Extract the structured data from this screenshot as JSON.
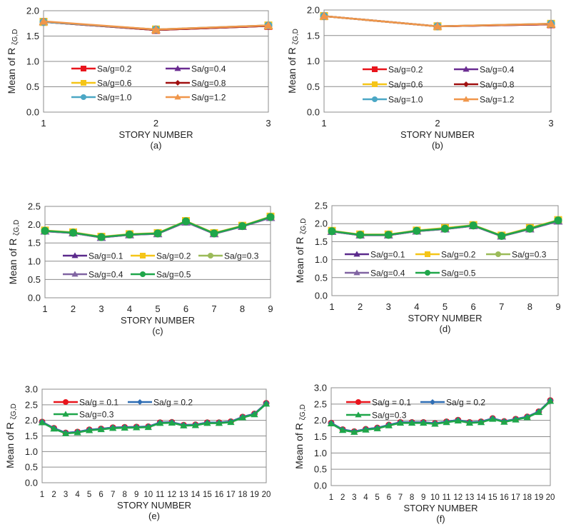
{
  "chart_data": [
    {
      "type": "line",
      "panel": "(a)",
      "xlabel": "STORY NUMBER",
      "ylabel": "Mean of R",
      "ylabel_sub": "ζG,D",
      "ylim": [
        0,
        2.0
      ],
      "ytick_step": 0.5,
      "grid": true,
      "legend": "center (2 columns)",
      "categories": [
        "1",
        "2",
        "3"
      ],
      "series": [
        {
          "name": "Sa/g=0.2",
          "color": "#e8141c",
          "marker": "square",
          "values": [
            1.78,
            1.62,
            1.7
          ]
        },
        {
          "name": "Sa/g=0.4",
          "color": "#6a2c91",
          "marker": "triangle",
          "values": [
            1.78,
            1.62,
            1.7
          ]
        },
        {
          "name": "Sa/g=0.6",
          "color": "#f5c518",
          "marker": "square",
          "values": [
            1.78,
            1.63,
            1.71
          ]
        },
        {
          "name": "Sa/g=0.8",
          "color": "#a01010",
          "marker": "diamond",
          "values": [
            1.78,
            1.62,
            1.7
          ]
        },
        {
          "name": "Sa/g=1.0",
          "color": "#4ba7c5",
          "marker": "circle",
          "values": [
            1.78,
            1.63,
            1.71
          ]
        },
        {
          "name": "Sa/g=1.2",
          "color": "#f0964a",
          "marker": "triangle",
          "values": [
            1.79,
            1.63,
            1.71
          ]
        }
      ]
    },
    {
      "type": "line",
      "panel": "(b)",
      "xlabel": "STORY NUMBER",
      "ylabel": "Mean of R",
      "ylabel_sub": "ζG,D",
      "ylim": [
        0,
        2.0
      ],
      "ytick_step": 0.5,
      "grid": true,
      "legend": "center (2 columns)",
      "categories": [
        "1",
        "2",
        "3"
      ],
      "series": [
        {
          "name": "Sa/g=0.2",
          "color": "#e8141c",
          "marker": "square",
          "values": [
            1.88,
            1.68,
            1.72
          ]
        },
        {
          "name": "Sa/g=0.4",
          "color": "#6a2c91",
          "marker": "triangle",
          "values": [
            1.88,
            1.68,
            1.72
          ]
        },
        {
          "name": "Sa/g=0.6",
          "color": "#f5c518",
          "marker": "square",
          "values": [
            1.88,
            1.68,
            1.73
          ]
        },
        {
          "name": "Sa/g=0.8",
          "color": "#a01010",
          "marker": "diamond",
          "values": [
            1.88,
            1.68,
            1.72
          ]
        },
        {
          "name": "Sa/g=1.0",
          "color": "#4ba7c5",
          "marker": "circle",
          "values": [
            1.88,
            1.68,
            1.73
          ]
        },
        {
          "name": "Sa/g=1.2",
          "color": "#f0964a",
          "marker": "triangle",
          "values": [
            1.88,
            1.68,
            1.73
          ]
        }
      ]
    },
    {
      "type": "line",
      "panel": "(c)",
      "xlabel": "STORY NUMBER",
      "ylabel": "Mean of R",
      "ylabel_sub": "ζG,D",
      "ylim": [
        0,
        2.5
      ],
      "ytick_step": 0.5,
      "grid": true,
      "legend": "center (3 columns)",
      "categories": [
        "1",
        "2",
        "3",
        "4",
        "5",
        "6",
        "7",
        "8",
        "9"
      ],
      "series": [
        {
          "name": "Sa/g=0.1",
          "color": "#5b2a8c",
          "marker": "triangle",
          "values": [
            1.82,
            1.77,
            1.65,
            1.72,
            1.75,
            2.07,
            1.75,
            1.95,
            2.19
          ]
        },
        {
          "name": "Sa/g=0.2",
          "color": "#f5c518",
          "marker": "square",
          "values": [
            1.84,
            1.79,
            1.67,
            1.74,
            1.77,
            2.1,
            1.77,
            1.97,
            2.22
          ]
        },
        {
          "name": "Sa/g=0.3",
          "color": "#9bbb59",
          "marker": "circle",
          "values": [
            1.83,
            1.78,
            1.66,
            1.73,
            1.76,
            2.09,
            1.76,
            1.96,
            2.21
          ]
        },
        {
          "name": "Sa/g=0.4",
          "color": "#8064a2",
          "marker": "triangle",
          "values": [
            1.82,
            1.77,
            1.65,
            1.72,
            1.75,
            2.07,
            1.75,
            1.95,
            2.19
          ]
        },
        {
          "name": "Sa/g=0.5",
          "color": "#1fa64a",
          "marker": "circle",
          "values": [
            1.83,
            1.78,
            1.66,
            1.73,
            1.76,
            2.09,
            1.76,
            1.96,
            2.21
          ]
        }
      ]
    },
    {
      "type": "line",
      "panel": "(d)",
      "xlabel": "STORY NUMBER",
      "ylabel": "Mean of R",
      "ylabel_sub": "ζG,D",
      "ylim": [
        0,
        2.5
      ],
      "ytick_step": 0.5,
      "grid": true,
      "legend": "center (3 columns)",
      "categories": [
        "1",
        "2",
        "3",
        "4",
        "5",
        "6",
        "7",
        "8",
        "9"
      ],
      "series": [
        {
          "name": "Sa/g=0.1",
          "color": "#5b2a8c",
          "marker": "triangle",
          "values": [
            1.78,
            1.68,
            1.68,
            1.79,
            1.85,
            1.94,
            1.65,
            1.85,
            2.07
          ]
        },
        {
          "name": "Sa/g=0.2",
          "color": "#f5c518",
          "marker": "square",
          "values": [
            1.8,
            1.7,
            1.7,
            1.81,
            1.88,
            1.96,
            1.67,
            1.88,
            2.1
          ]
        },
        {
          "name": "Sa/g=0.3",
          "color": "#9bbb59",
          "marker": "circle",
          "values": [
            1.79,
            1.69,
            1.69,
            1.8,
            1.86,
            1.95,
            1.66,
            1.86,
            2.09
          ]
        },
        {
          "name": "Sa/g=0.4",
          "color": "#8064a2",
          "marker": "triangle",
          "values": [
            1.78,
            1.68,
            1.68,
            1.79,
            1.85,
            1.94,
            1.65,
            1.85,
            2.07
          ]
        },
        {
          "name": "Sa/g=0.5",
          "color": "#1fa64a",
          "marker": "circle",
          "values": [
            1.79,
            1.69,
            1.69,
            1.8,
            1.86,
            1.95,
            1.66,
            1.86,
            2.09
          ]
        }
      ]
    },
    {
      "type": "line",
      "panel": "(e)",
      "xlabel": "STORY NUMBER",
      "ylabel": "Mean of R",
      "ylabel_sub": "ζG,D",
      "ylim": [
        0,
        3.0
      ],
      "ytick_step": 0.5,
      "grid": true,
      "legend": "top-left (2 columns)",
      "categories": [
        "1",
        "2",
        "3",
        "4",
        "5",
        "6",
        "7",
        "8",
        "9",
        "10",
        "11",
        "12",
        "13",
        "14",
        "15",
        "16",
        "17",
        "18",
        "19",
        "20"
      ],
      "series": [
        {
          "name": "Sa/g = 0.1",
          "color": "#e8141c",
          "marker": "circle",
          "values": [
            1.95,
            1.75,
            1.6,
            1.63,
            1.7,
            1.73,
            1.77,
            1.78,
            1.79,
            1.8,
            1.93,
            1.94,
            1.85,
            1.86,
            1.93,
            1.93,
            1.96,
            2.11,
            2.21,
            2.55
          ]
        },
        {
          "name": "Sa/g = 0.2",
          "color": "#2e6db4",
          "marker": "diamond",
          "values": [
            1.95,
            1.75,
            1.6,
            1.63,
            1.7,
            1.73,
            1.77,
            1.78,
            1.79,
            1.8,
            1.93,
            1.94,
            1.85,
            1.86,
            1.93,
            1.93,
            1.96,
            2.11,
            2.21,
            2.55
          ]
        },
        {
          "name": "Sa/g=0.3",
          "color": "#1fa64a",
          "marker": "triangle",
          "values": [
            1.93,
            1.73,
            1.58,
            1.61,
            1.68,
            1.71,
            1.75,
            1.76,
            1.77,
            1.78,
            1.91,
            1.92,
            1.83,
            1.84,
            1.91,
            1.91,
            1.94,
            2.09,
            2.19,
            2.53
          ]
        }
      ]
    },
    {
      "type": "line",
      "panel": "(f)",
      "xlabel": "STORY NUMBER",
      "ylabel": "Mean of R",
      "ylabel_sub": "ζG,D",
      "ylim": [
        0,
        3.0
      ],
      "ytick_step": 0.5,
      "grid": true,
      "legend": "top-left (2 columns)",
      "categories": [
        "1",
        "2",
        "3",
        "4",
        "5",
        "6",
        "7",
        "8",
        "9",
        "10",
        "11",
        "12",
        "13",
        "14",
        "15",
        "16",
        "17",
        "18",
        "19",
        "20"
      ],
      "series": [
        {
          "name": "Sa/g = 0.1",
          "color": "#e8141c",
          "marker": "circle",
          "values": [
            1.92,
            1.72,
            1.66,
            1.73,
            1.77,
            1.86,
            1.94,
            1.94,
            1.94,
            1.91,
            1.96,
            2.01,
            1.94,
            1.96,
            2.06,
            1.97,
            2.04,
            2.11,
            2.27,
            2.61
          ]
        },
        {
          "name": "Sa/g = 0.2",
          "color": "#2e6db4",
          "marker": "diamond",
          "values": [
            1.92,
            1.72,
            1.66,
            1.73,
            1.77,
            1.86,
            1.94,
            1.94,
            1.94,
            1.91,
            1.96,
            2.01,
            1.94,
            1.96,
            2.06,
            1.97,
            2.04,
            2.11,
            2.27,
            2.61
          ]
        },
        {
          "name": "Sa/g=0.3",
          "color": "#1fa64a",
          "marker": "triangle",
          "values": [
            1.9,
            1.7,
            1.64,
            1.71,
            1.75,
            1.84,
            1.92,
            1.92,
            1.92,
            1.89,
            1.94,
            1.99,
            1.92,
            1.94,
            2.04,
            1.95,
            2.02,
            2.09,
            2.25,
            2.59
          ]
        }
      ]
    }
  ]
}
